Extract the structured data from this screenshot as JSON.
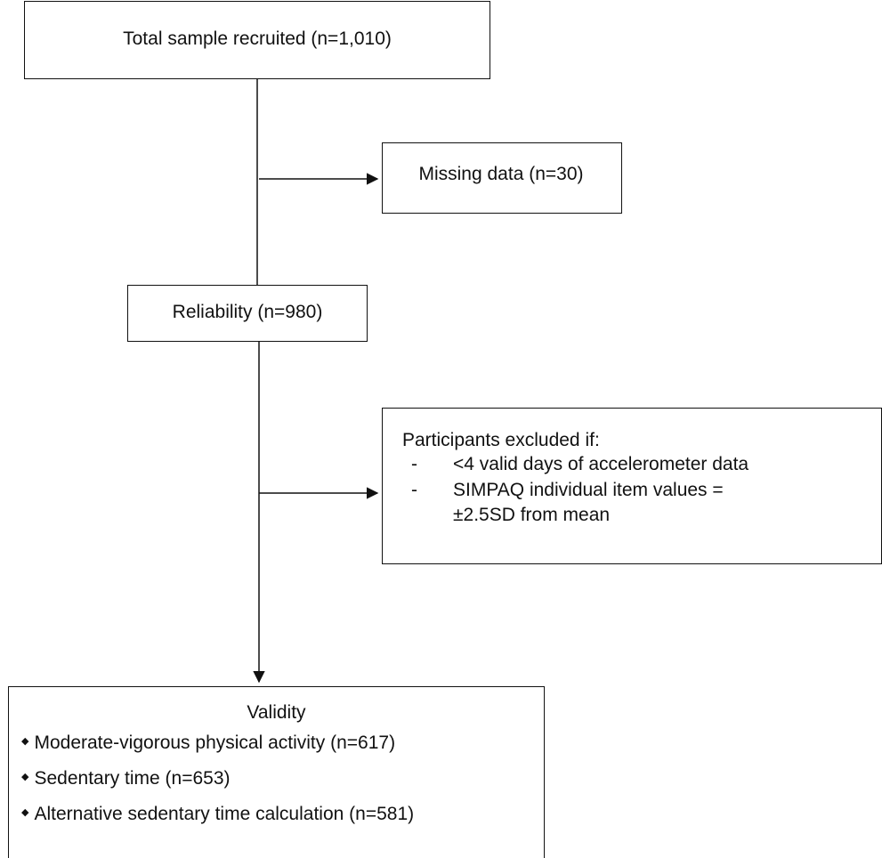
{
  "flowchart": {
    "total": {
      "label": "Total sample recruited (n=1,010)"
    },
    "missing": {
      "label": "Missing data  (n=30)"
    },
    "reliability": {
      "label": "Reliability (n=980)"
    },
    "excluded": {
      "title": "Participants excluded if:",
      "items": [
        {
          "dash": "-",
          "lines": [
            "<4 valid days of accelerometer data"
          ]
        },
        {
          "dash": "-",
          "lines": [
            "SIMPAQ individual item values =",
            "±2.5SD from mean"
          ]
        }
      ]
    },
    "validity": {
      "title": "Validity",
      "bullet_icon": "diamond-bullet",
      "items": [
        "Moderate-vigorous physical activity (n=617)",
        "Sedentary time (n=653)",
        "Alternative sedentary time calculation (n=581)"
      ]
    }
  }
}
